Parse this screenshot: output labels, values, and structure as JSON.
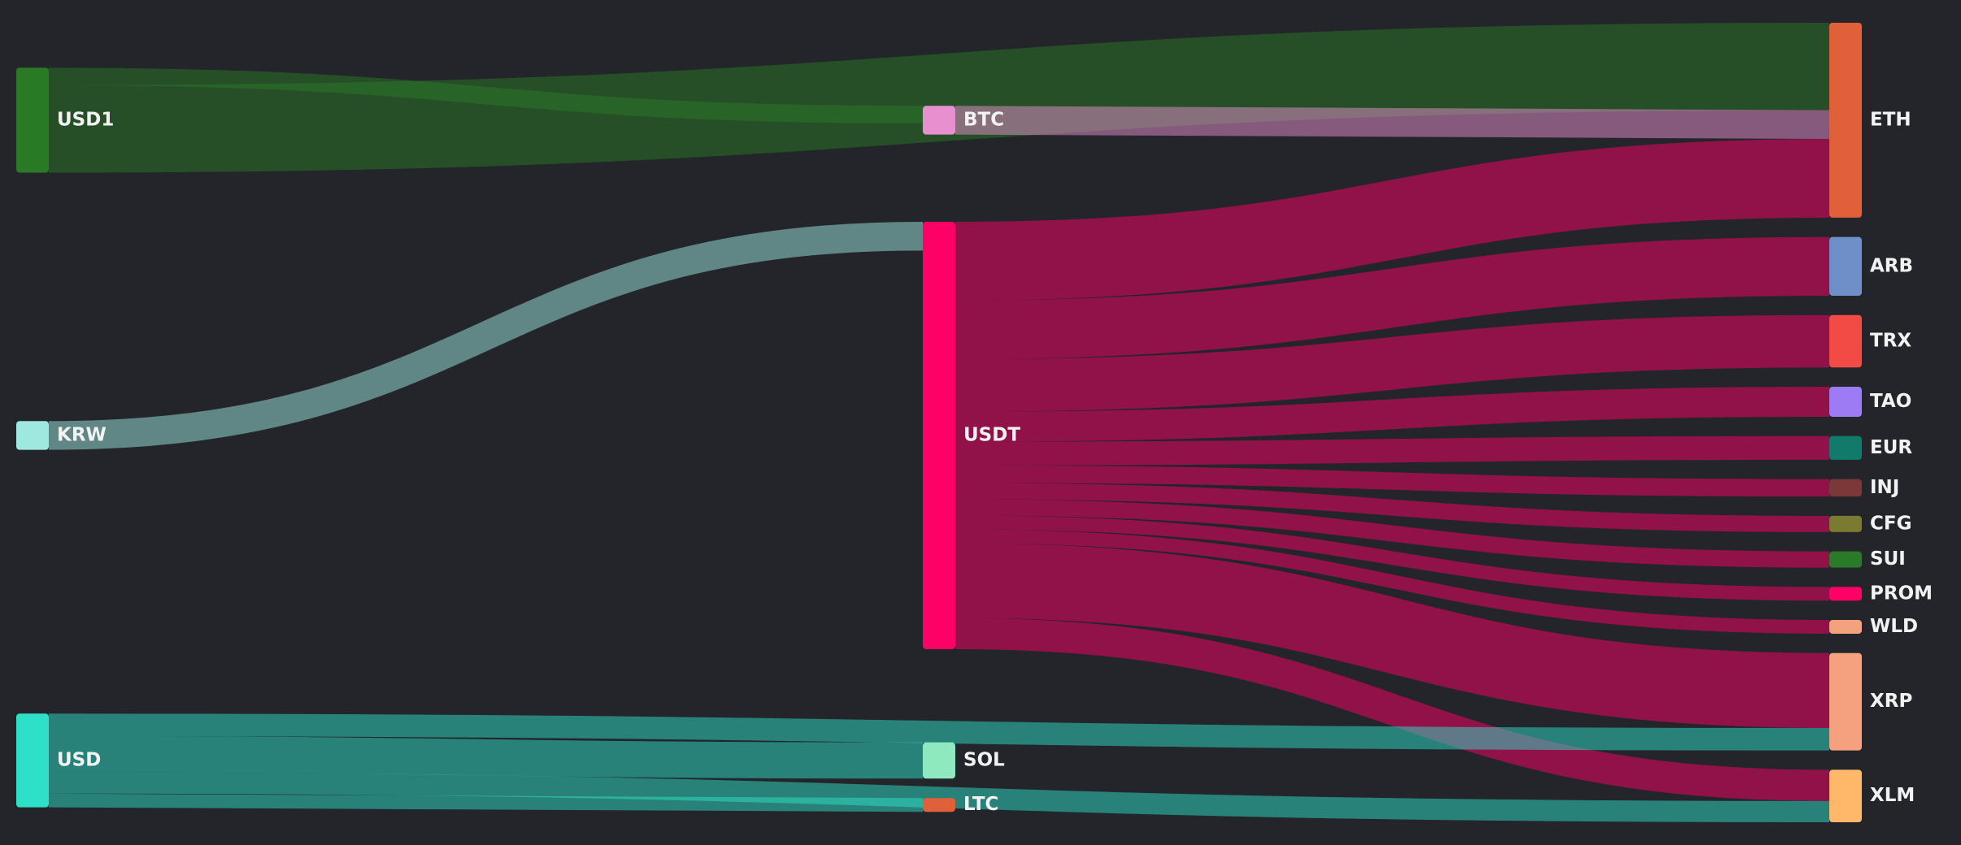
{
  "chart_data": {
    "type": "sankey",
    "nodes": [
      {
        "name": "USD1",
        "color": "#2a7a25"
      },
      {
        "name": "KRW",
        "color": "#9ee8e0"
      },
      {
        "name": "USD",
        "color": "#2fe0c8"
      },
      {
        "name": "BTC",
        "color": "#e88fcf"
      },
      {
        "name": "USDT",
        "color": "#ff0066"
      },
      {
        "name": "SOL",
        "color": "#8ee8c0"
      },
      {
        "name": "LTC",
        "color": "#e0603a"
      },
      {
        "name": "ETH",
        "color": "#e0603a"
      },
      {
        "name": "ARB",
        "color": "#6e8fc7"
      },
      {
        "name": "TRX",
        "color": "#f24a44"
      },
      {
        "name": "TAO",
        "color": "#9d7bf5"
      },
      {
        "name": "EUR",
        "color": "#127a6a"
      },
      {
        "name": "INJ",
        "color": "#7a3838"
      },
      {
        "name": "CFG",
        "color": "#7a7a30"
      },
      {
        "name": "SUI",
        "color": "#2a7a2a"
      },
      {
        "name": "PROM",
        "color": "#ff0066"
      },
      {
        "name": "WLD",
        "color": "#f2a37e"
      },
      {
        "name": "XRP",
        "color": "#f5a07e"
      },
      {
        "name": "XLM",
        "color": "#ffb86a"
      }
    ],
    "links": [
      {
        "source": 0,
        "target": 7,
        "value": 70
      },
      {
        "source": 0,
        "target": 3,
        "value": 14
      },
      {
        "source": 3,
        "target": 7,
        "value": 23
      },
      {
        "source": 1,
        "target": 4,
        "value": 23
      },
      {
        "source": 4,
        "target": 7,
        "value": 63
      },
      {
        "source": 4,
        "target": 8,
        "value": 47
      },
      {
        "source": 4,
        "target": 9,
        "value": 42
      },
      {
        "source": 4,
        "target": 10,
        "value": 24
      },
      {
        "source": 4,
        "target": 11,
        "value": 19
      },
      {
        "source": 4,
        "target": 12,
        "value": 14
      },
      {
        "source": 4,
        "target": 13,
        "value": 13
      },
      {
        "source": 4,
        "target": 14,
        "value": 13
      },
      {
        "source": 4,
        "target": 15,
        "value": 11
      },
      {
        "source": 4,
        "target": 16,
        "value": 11
      },
      {
        "source": 4,
        "target": 17,
        "value": 60
      },
      {
        "source": 4,
        "target": 18,
        "value": 25
      },
      {
        "source": 2,
        "target": 17,
        "value": 18
      },
      {
        "source": 2,
        "target": 5,
        "value": 29
      },
      {
        "source": 2,
        "target": 6,
        "value": 11
      },
      {
        "source": 2,
        "target": 18,
        "value": 17
      }
    ]
  }
}
